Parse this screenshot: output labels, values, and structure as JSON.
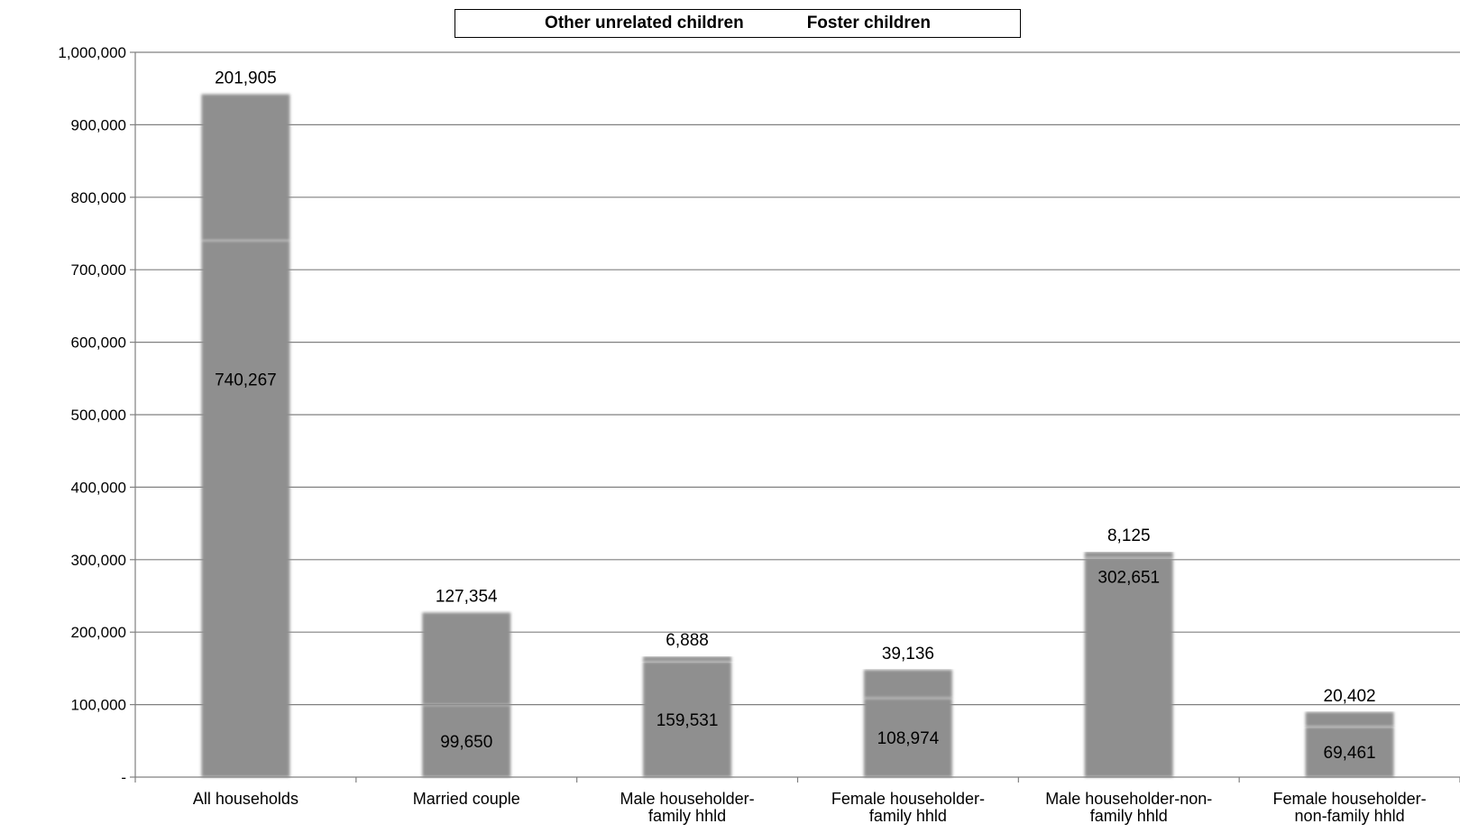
{
  "chart_data": {
    "type": "bar",
    "stacked": true,
    "categories": [
      [
        "All households"
      ],
      [
        "Married couple"
      ],
      [
        "Male householder-",
        "family hhld"
      ],
      [
        "Female householder-",
        "family hhld"
      ],
      [
        "Male householder-non-",
        "family hhld"
      ],
      [
        "Female householder-",
        "non-family hhld"
      ]
    ],
    "series": [
      {
        "name": "Other unrelated children",
        "values": [
          740267,
          99650,
          159531,
          108974,
          302651,
          69461
        ],
        "labels": [
          "740,267",
          "99,650",
          "159,531",
          "108,974",
          "302,651",
          "69,461"
        ]
      },
      {
        "name": "Foster children",
        "values": [
          201905,
          127354,
          6888,
          39136,
          8125,
          20402
        ],
        "labels": [
          "201,905",
          "127,354",
          "6,888",
          "39,136",
          "8,125",
          "20,402"
        ]
      }
    ],
    "ylim": [
      0,
      1000000
    ],
    "yticks": [
      0,
      100000,
      200000,
      300000,
      400000,
      500000,
      600000,
      700000,
      800000,
      900000,
      1000000
    ],
    "ytick_labels": [
      "-",
      "100,000",
      "200,000",
      "300,000",
      "400,000",
      "500,000",
      "600,000",
      "700,000",
      "800,000",
      "900,000",
      "1,000,000"
    ],
    "legend_position": "top-center",
    "grid": true,
    "colors": {
      "bar": "#8f8f8f",
      "grid": "#808080",
      "axis": "#808080",
      "text": "#000000"
    }
  }
}
